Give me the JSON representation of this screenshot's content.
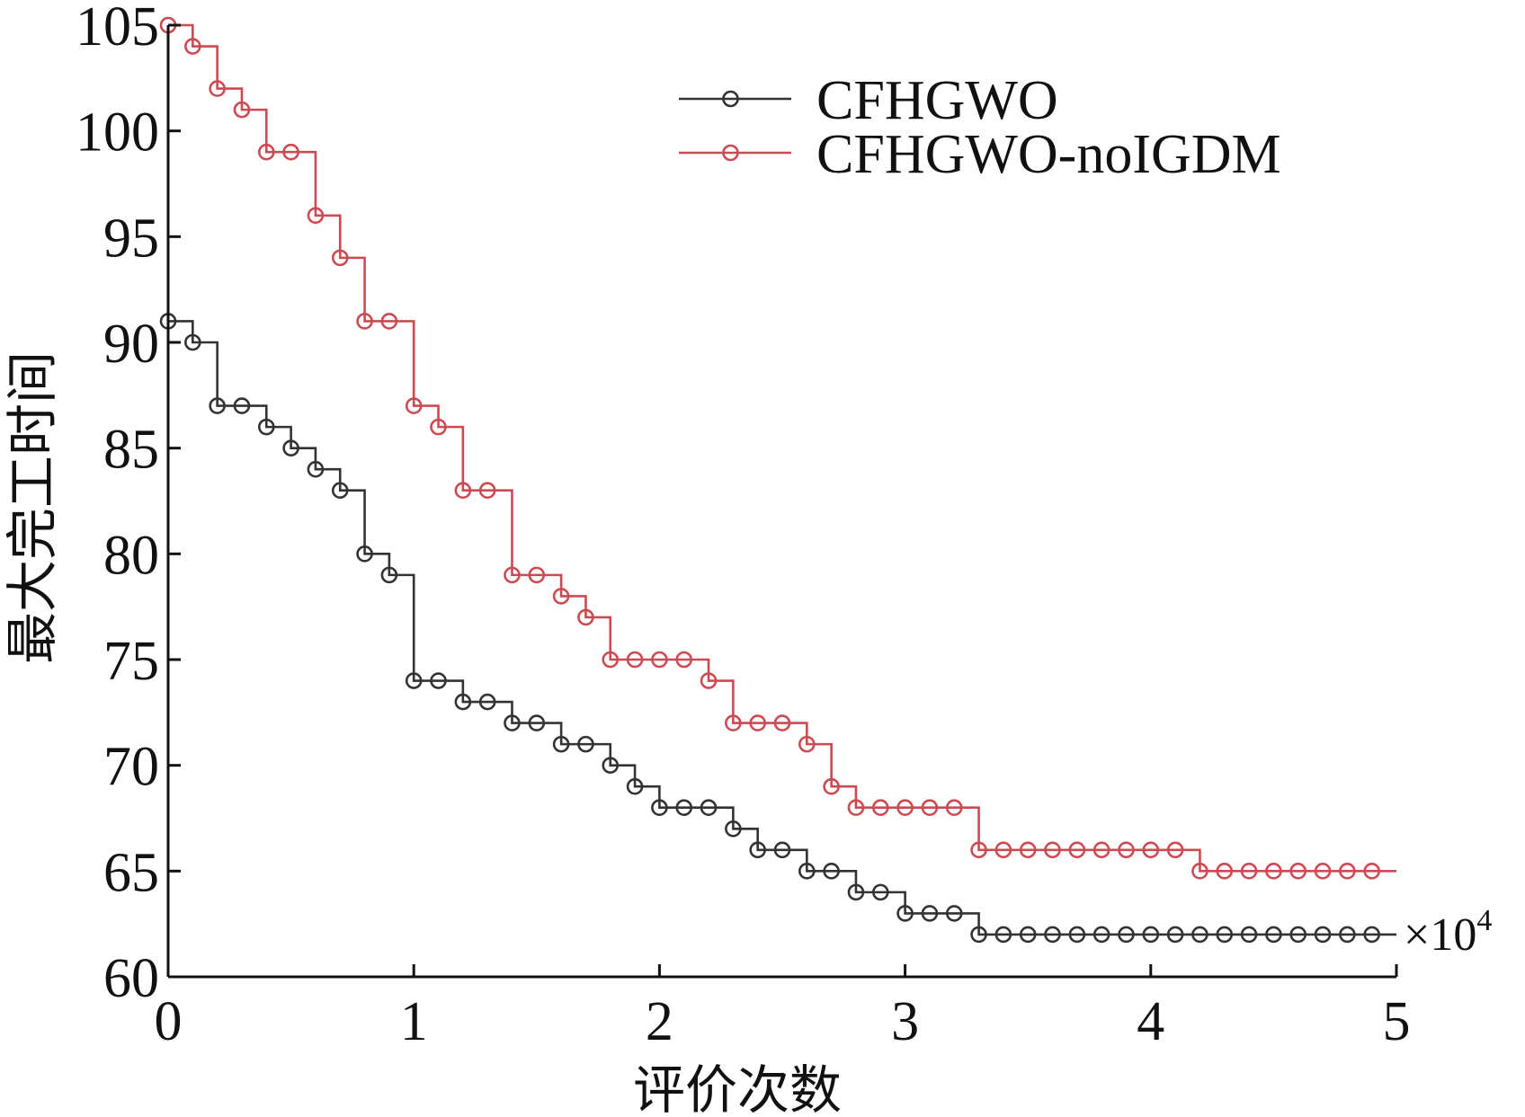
{
  "chart_data": {
    "type": "line",
    "title": "",
    "xlabel": "评价次数",
    "ylabel": "最大完工时间",
    "x_multiplier": "×10",
    "x_multiplier_exp": "4",
    "xlim": [
      0,
      5
    ],
    "ylim": [
      60,
      105
    ],
    "xticks": [
      0,
      1,
      2,
      3,
      4,
      5
    ],
    "yticks": [
      60,
      65,
      70,
      75,
      80,
      85,
      90,
      95,
      100,
      105
    ],
    "xtick_labels": [
      "0",
      "1",
      "2",
      "3",
      "4",
      "5"
    ],
    "ytick_labels": [
      "60",
      "65",
      "70",
      "75",
      "80",
      "85",
      "90",
      "95",
      "100",
      "105"
    ],
    "grid": false,
    "legend_position": "top-right",
    "style": "step-with-markers",
    "series": [
      {
        "name": "CFHGWO",
        "color": "#333333",
        "x": [
          0,
          0.1,
          0.2,
          0.3,
          0.4,
          0.5,
          0.6,
          0.7,
          0.8,
          0.9,
          1.0,
          1.1,
          1.2,
          1.3,
          1.4,
          1.5,
          1.6,
          1.7,
          1.8,
          1.9,
          2.0,
          2.1,
          2.2,
          2.3,
          2.4,
          2.5,
          2.6,
          2.7,
          2.8,
          2.9,
          3.0,
          3.1,
          3.2,
          3.3,
          3.4,
          3.5,
          3.6,
          3.7,
          3.8,
          3.9,
          4.0,
          4.1,
          4.2,
          4.3,
          4.4,
          4.5,
          4.6,
          4.7,
          4.8,
          4.9
        ],
        "y": [
          91,
          90,
          87,
          87,
          86,
          85,
          84,
          83,
          80,
          79,
          74,
          74,
          73,
          73,
          72,
          72,
          71,
          71,
          70,
          69,
          68,
          68,
          68,
          67,
          66,
          66,
          65,
          65,
          64,
          64,
          63,
          63,
          63,
          62,
          62,
          62,
          62,
          62,
          62,
          62,
          62,
          62,
          62,
          62,
          62,
          62,
          62,
          62,
          62,
          62
        ]
      },
      {
        "name": "CFHGWO-noIGDM",
        "color": "#cc4b52",
        "x": [
          0,
          0.1,
          0.2,
          0.3,
          0.4,
          0.5,
          0.6,
          0.7,
          0.8,
          0.9,
          1.0,
          1.1,
          1.2,
          1.3,
          1.4,
          1.5,
          1.6,
          1.7,
          1.8,
          1.9,
          2.0,
          2.1,
          2.2,
          2.3,
          2.4,
          2.5,
          2.6,
          2.7,
          2.8,
          2.9,
          3.0,
          3.1,
          3.2,
          3.3,
          3.4,
          3.5,
          3.6,
          3.7,
          3.8,
          3.9,
          4.0,
          4.1,
          4.2,
          4.3,
          4.4,
          4.5,
          4.6,
          4.7,
          4.8,
          4.9
        ],
        "y": [
          105,
          104,
          102,
          101,
          99,
          99,
          96,
          94,
          91,
          91,
          87,
          86,
          83,
          83,
          79,
          79,
          78,
          77,
          75,
          75,
          75,
          75,
          74,
          72,
          72,
          72,
          71,
          69,
          68,
          68,
          68,
          68,
          68,
          66,
          66,
          66,
          66,
          66,
          66,
          66,
          66,
          66,
          65,
          65,
          65,
          65,
          65,
          65,
          65,
          65
        ]
      }
    ]
  }
}
